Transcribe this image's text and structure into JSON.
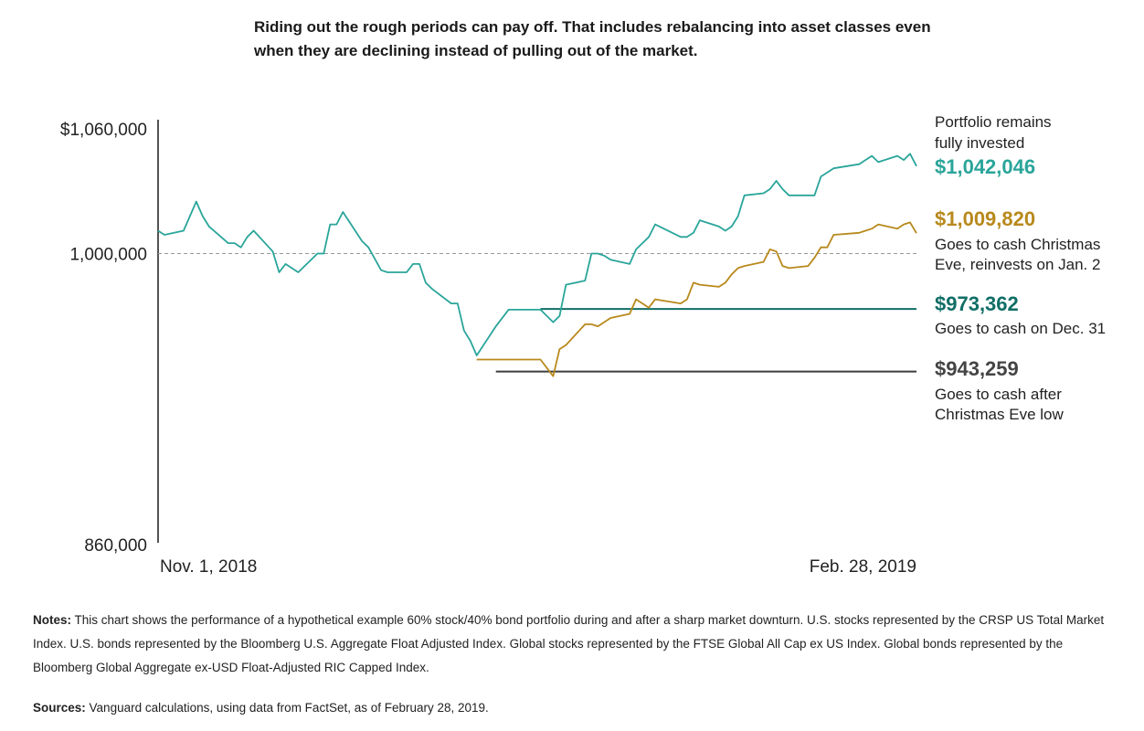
{
  "title": "Riding out the rough periods can pay off. That includes rebalancing into asset classes even when they are declining instead of pulling out of the market.",
  "notes": {
    "label": "Notes:",
    "text": "This chart shows the performance of a hypothetical example 60% stock/40% bond portfolio during and after a sharp market downturn. U.S. stocks represented by the CRSP US Total Market Index. U.S. bonds represented by the Bloomberg U.S. Aggregate Float Adjusted Index. Global stocks represented by the FTSE Global All Cap ex US Index. Global bonds represented by the Bloomberg Global Aggregate ex-USD Float-Adjusted RIC Capped Index."
  },
  "sources": {
    "label": "Sources:",
    "text": "Vanguard calculations, using data from FactSet, as of February 28, 2019."
  },
  "chart_data": {
    "type": "line",
    "title": "",
    "xlabel": "",
    "ylabel": "",
    "ylim": [
      860000,
      1060000
    ],
    "yticks": [
      {
        "value": 1060000,
        "label": "$1,060,000"
      },
      {
        "value": 1000000,
        "label": "1,000,000"
      },
      {
        "value": 860000,
        "label": "860,000"
      }
    ],
    "x_range": [
      "2018-11-01",
      "2019-02-28"
    ],
    "xtick_labels": [
      "Nov. 1, 2018",
      "Feb. 28, 2019"
    ],
    "reference_line": {
      "value": 1000000,
      "style": "dashed"
    },
    "colors": {
      "invested": "#2aa59a",
      "christmas_eve": "#b8891c",
      "dec31": "#0f6e66",
      "after_low": "#3d3d3d",
      "reference": "#999999"
    },
    "series": [
      {
        "key": "invested",
        "name": "Portfolio remains fully invested",
        "final_label": "$1,042,046",
        "x": [
          "2018-11-01",
          "2018-11-02",
          "2018-11-05",
          "2018-11-07",
          "2018-11-08",
          "2018-11-09",
          "2018-11-12",
          "2018-11-13",
          "2018-11-14",
          "2018-11-15",
          "2018-11-16",
          "2018-11-19",
          "2018-11-20",
          "2018-11-21",
          "2018-11-23",
          "2018-11-26",
          "2018-11-27",
          "2018-11-28",
          "2018-11-29",
          "2018-11-30",
          "2018-12-03",
          "2018-12-04",
          "2018-12-06",
          "2018-12-07",
          "2018-12-10",
          "2018-12-11",
          "2018-12-12",
          "2018-12-13",
          "2018-12-14",
          "2018-12-17",
          "2018-12-18",
          "2018-12-19",
          "2018-12-20",
          "2018-12-21",
          "2018-12-24",
          "2018-12-26",
          "2018-12-27",
          "2018-12-28",
          "2018-12-31",
          "2019-01-02",
          "2019-01-03",
          "2019-01-04",
          "2019-01-07",
          "2019-01-08",
          "2019-01-09",
          "2019-01-10",
          "2019-01-11",
          "2019-01-14",
          "2019-01-15",
          "2019-01-16",
          "2019-01-17",
          "2019-01-18",
          "2019-01-22",
          "2019-01-23",
          "2019-01-24",
          "2019-01-25",
          "2019-01-28",
          "2019-01-29",
          "2019-01-30",
          "2019-01-31",
          "2019-02-01",
          "2019-02-04",
          "2019-02-05",
          "2019-02-06",
          "2019-02-07",
          "2019-02-08",
          "2019-02-11",
          "2019-02-12",
          "2019-02-13",
          "2019-02-14",
          "2019-02-15",
          "2019-02-19",
          "2019-02-20",
          "2019-02-21",
          "2019-02-22",
          "2019-02-25",
          "2019-02-26",
          "2019-02-27",
          "2019-02-28"
        ],
        "values": [
          1011000,
          1009000,
          1011000,
          1025000,
          1018000,
          1013000,
          1005000,
          1005000,
          1003000,
          1008000,
          1011000,
          1001000,
          991000,
          995000,
          991000,
          1000000,
          1000000,
          1014000,
          1014000,
          1020000,
          1006000,
          1003000,
          992000,
          991000,
          991000,
          995000,
          995000,
          986000,
          983000,
          976000,
          976000,
          963000,
          958000,
          951000,
          965000,
          973000,
          973000,
          973000,
          973000,
          967000,
          970000,
          985000,
          987000,
          1000000,
          1000000,
          999000,
          997000,
          995000,
          1002000,
          1005000,
          1008000,
          1014000,
          1008000,
          1008000,
          1010000,
          1016000,
          1013000,
          1011000,
          1013000,
          1018000,
          1028000,
          1029000,
          1031000,
          1035000,
          1031000,
          1028000,
          1028000,
          1028000,
          1037000,
          1039000,
          1041000,
          1043000,
          1045000,
          1047000,
          1044000,
          1047000,
          1045000,
          1048000,
          1042046
        ]
      },
      {
        "key": "christmas_eve",
        "name": "Goes to cash Christmas Eve, reinvests on Jan. 2",
        "final_label": "$1,009,820",
        "x": [
          "2018-12-21",
          "2018-12-24",
          "2018-12-26",
          "2018-12-27",
          "2018-12-28",
          "2018-12-31",
          "2019-01-02",
          "2019-01-03",
          "2019-01-04",
          "2019-01-07",
          "2019-01-08",
          "2019-01-09",
          "2019-01-10",
          "2019-01-11",
          "2019-01-14",
          "2019-01-15",
          "2019-01-16",
          "2019-01-17",
          "2019-01-18",
          "2019-01-22",
          "2019-01-23",
          "2019-01-24",
          "2019-01-25",
          "2019-01-28",
          "2019-01-29",
          "2019-01-30",
          "2019-01-31",
          "2019-02-01",
          "2019-02-04",
          "2019-02-05",
          "2019-02-06",
          "2019-02-07",
          "2019-02-08",
          "2019-02-11",
          "2019-02-12",
          "2019-02-13",
          "2019-02-14",
          "2019-02-15",
          "2019-02-19",
          "2019-02-20",
          "2019-02-21",
          "2019-02-22",
          "2019-02-25",
          "2019-02-26",
          "2019-02-27",
          "2019-02-28"
        ],
        "values": [
          949000,
          949000,
          949000,
          949000,
          949000,
          949000,
          941000,
          954000,
          956000,
          966000,
          966000,
          965000,
          967000,
          969000,
          971000,
          978000,
          976000,
          974000,
          978000,
          976000,
          978000,
          986000,
          985000,
          984000,
          986000,
          990000,
          993000,
          994000,
          996000,
          1002000,
          1001000,
          994000,
          993000,
          994000,
          998000,
          1003000,
          1003000,
          1009000,
          1010000,
          1011000,
          1012000,
          1014000,
          1012000,
          1014000,
          1015000,
          1009820
        ]
      },
      {
        "key": "dec31",
        "name": "Goes to cash on Dec. 31",
        "final_label": "$973,362",
        "x": [
          "2018-12-31",
          "2019-02-28"
        ],
        "values": [
          973362,
          973362
        ]
      },
      {
        "key": "after_low",
        "name": "Goes to cash after Christmas Eve low",
        "final_label": "$943,259",
        "x": [
          "2018-12-24",
          "2019-02-28"
        ],
        "values": [
          943259,
          943259
        ]
      }
    ]
  }
}
